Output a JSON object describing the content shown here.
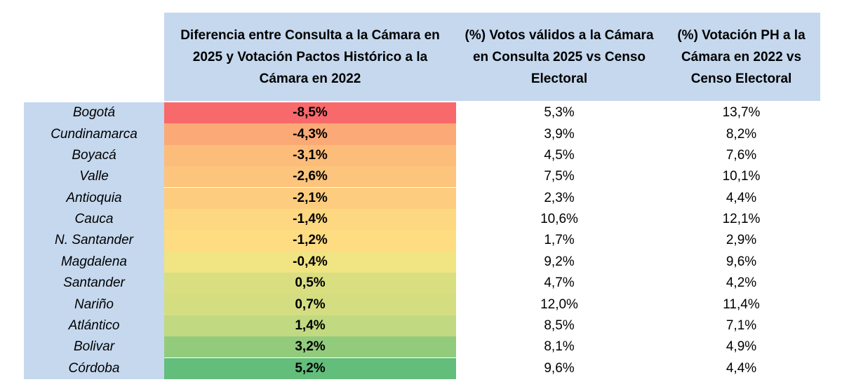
{
  "table": {
    "headers": [
      "Diferencia entre Consulta a la Cámara en 2025 y Votación Pactos Histórico a la Cámara en 2022",
      "(%) Votos válidos a la Cámara en Consulta 2025 vs Censo Electoral",
      "(%) Votación PH a la Cámara en 2022 vs Censo Electoral"
    ],
    "rows": [
      {
        "name": "Bogotá",
        "diff": "-8,5%",
        "v2": "5,3%",
        "v3": "13,7%",
        "color": "#f8696b"
      },
      {
        "name": "Cundinamarca",
        "diff": "-4,3%",
        "v2": "3,9%",
        "v3": "8,2%",
        "color": "#fbaa77"
      },
      {
        "name": "Boyacá",
        "diff": "-3,1%",
        "v2": "4,5%",
        "v3": "7,6%",
        "color": "#fcbd7b"
      },
      {
        "name": "Valle",
        "diff": "-2,6%",
        "v2": "7,5%",
        "v3": "10,1%",
        "color": "#fcc47c"
      },
      {
        "name": "Antioquia",
        "diff": "-2,1%",
        "v2": "2,3%",
        "v3": "4,4%",
        "color": "#fdcc7e"
      },
      {
        "name": "Cauca",
        "diff": "-1,4%",
        "v2": "10,6%",
        "v3": "12,1%",
        "color": "#fed880"
      },
      {
        "name": "N. Santander",
        "diff": "-1,2%",
        "v2": "1,7%",
        "v3": "2,9%",
        "color": "#fedc81"
      },
      {
        "name": "Magdalena",
        "diff": "-0,4%",
        "v2": "9,2%",
        "v3": "9,6%",
        "color": "#f0e483"
      },
      {
        "name": "Santander",
        "diff": "0,5%",
        "v2": "4,7%",
        "v3": "4,2%",
        "color": "#d9df81"
      },
      {
        "name": "Nariño",
        "diff": "0,7%",
        "v2": "12,0%",
        "v3": "11,4%",
        "color": "#d4de81"
      },
      {
        "name": "Atlántico",
        "diff": "1,4%",
        "v2": "8,5%",
        "v3": "7,1%",
        "color": "#c1d980"
      },
      {
        "name": "Bolivar",
        "diff": "3,2%",
        "v2": "8,1%",
        "v3": "4,9%",
        "color": "#93cb7d"
      },
      {
        "name": "Córdoba",
        "diff": "5,2%",
        "v2": "9,6%",
        "v3": "4,4%",
        "color": "#63be7b"
      }
    ]
  }
}
